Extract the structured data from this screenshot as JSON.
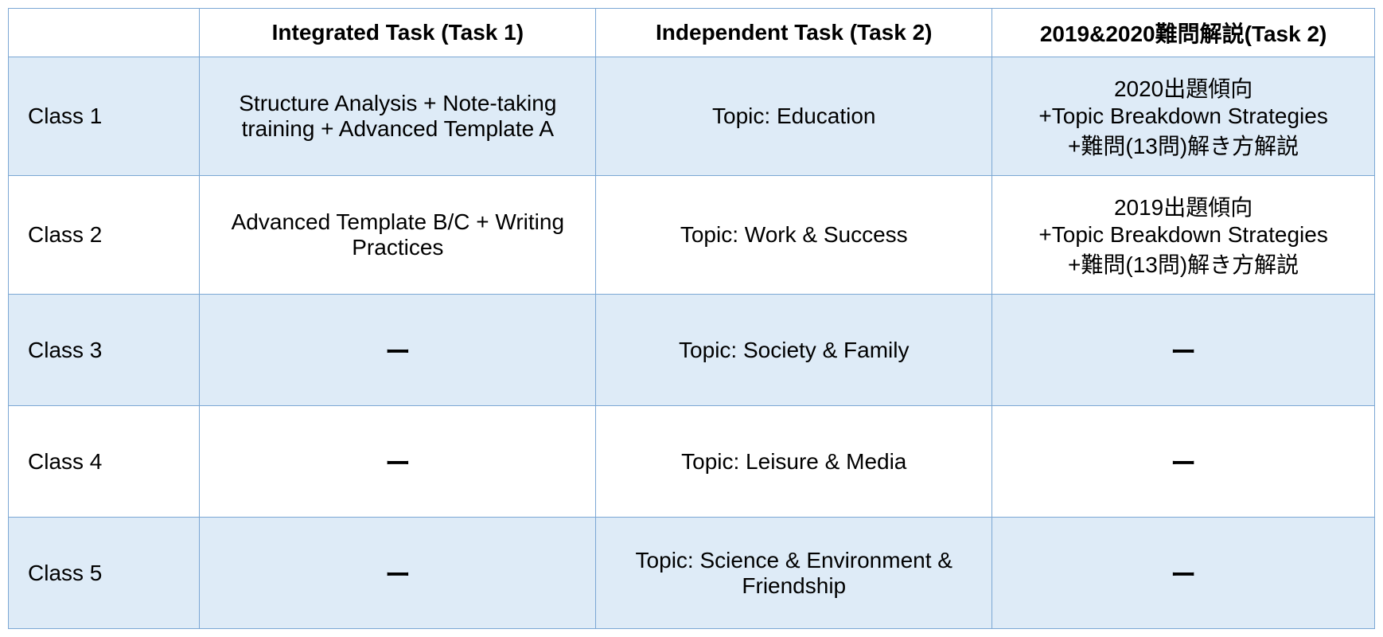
{
  "table": {
    "border_color": "#7ba7d4",
    "shaded_bg": "#deebf7",
    "plain_bg": "#ffffff",
    "text_color": "#000000",
    "header_fontsize": 28,
    "cell_fontsize": 28,
    "columns": [
      {
        "label": "",
        "width_pct": 14
      },
      {
        "label": "Integrated Task (Task 1)",
        "width_pct": 29
      },
      {
        "label": "Independent Task (Task 2)",
        "width_pct": 29
      },
      {
        "label": "2019&2020難問解説(Task 2)",
        "width_pct": 28
      }
    ],
    "rows": [
      {
        "shaded": true,
        "label": "Class 1",
        "cells": [
          "Structure Analysis + Note-taking training + Advanced Template A",
          "Topic: Education",
          "2020出題傾向\n+Topic Breakdown Strategies\n+難問(13問)解き方解説"
        ]
      },
      {
        "shaded": false,
        "label": "Class 2",
        "cells": [
          "Advanced Template B/C + Writing Practices",
          "Topic: Work & Success",
          "2019出題傾向\n+Topic Breakdown Strategies\n+難問(13問)解き方解説"
        ]
      },
      {
        "shaded": true,
        "label": "Class 3",
        "cells": [
          "ー",
          "Topic: Society & Family",
          "ー"
        ]
      },
      {
        "shaded": false,
        "label": "Class 4",
        "cells": [
          "ー",
          "Topic: Leisure & Media",
          "ー"
        ]
      },
      {
        "shaded": true,
        "label": "Class 5",
        "cells": [
          "ー",
          "Topic: Science & Environment & Friendship",
          "ー"
        ]
      }
    ]
  }
}
